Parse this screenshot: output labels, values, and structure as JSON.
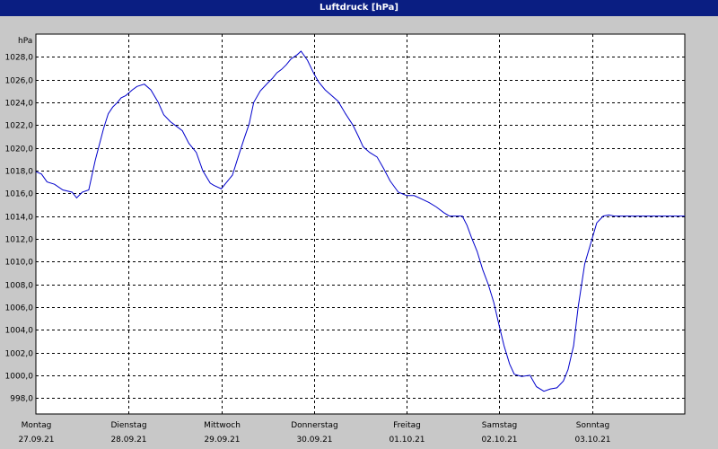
{
  "window": {
    "title": "Luftdruck [hPa]"
  },
  "chart_data": {
    "type": "line",
    "title": "Luftdruck [hPa]",
    "ylabel": "hPa",
    "xlabel": "",
    "ylim": [
      996.6,
      1030.0
    ],
    "xlim": [
      0,
      7
    ],
    "grid": true,
    "y_ticks": [
      "998,0",
      "1000,0",
      "1002,0",
      "1004,0",
      "1006,0",
      "1008,0",
      "1010,0",
      "1012,0",
      "1014,0",
      "1016,0",
      "1018,0",
      "1020,0",
      "1022,0",
      "1024,0",
      "1026,0",
      "1028,0"
    ],
    "y_tick_values": [
      998,
      1000,
      1002,
      1004,
      1006,
      1008,
      1010,
      1012,
      1014,
      1016,
      1018,
      1020,
      1022,
      1024,
      1026,
      1028
    ],
    "x_ticks": [
      {
        "day": "Montag",
        "date": "27.09.21"
      },
      {
        "day": "Dienstag",
        "date": "28.09.21"
      },
      {
        "day": "Mittwoch",
        "date": "29.09.21"
      },
      {
        "day": "Donnerstag",
        "date": "30.09.21"
      },
      {
        "day": "Freitag",
        "date": "01.10.21"
      },
      {
        "day": "Samstag",
        "date": "02.10.21"
      },
      {
        "day": "Sonntag",
        "date": "03.10.21"
      }
    ],
    "series": [
      {
        "color": "#0000cc",
        "x": [
          0.0,
          0.06,
          0.12,
          0.2,
          0.29,
          0.39,
          0.44,
          0.5,
          0.57,
          0.64,
          0.73,
          0.78,
          0.83,
          0.88,
          0.92,
          0.97,
          1.04,
          1.09,
          1.17,
          1.24,
          1.32,
          1.38,
          1.45,
          1.5,
          1.58,
          1.65,
          1.73,
          1.8,
          1.88,
          1.92,
          2.0,
          2.06,
          2.12,
          2.19,
          2.25,
          2.3,
          2.35,
          2.42,
          2.5,
          2.55,
          2.6,
          2.65,
          2.7,
          2.75,
          2.82,
          2.86,
          2.93,
          3.0,
          3.05,
          3.12,
          3.19,
          3.26,
          3.34,
          3.42,
          3.48,
          3.53,
          3.6,
          3.68,
          3.75,
          3.82,
          3.91,
          4.0,
          4.08,
          4.16,
          4.24,
          4.32,
          4.4,
          4.46,
          4.52,
          4.6,
          4.65,
          4.7,
          4.76,
          4.82,
          4.88,
          4.94,
          5.0,
          5.05,
          5.11,
          5.16,
          5.24,
          5.33,
          5.4,
          5.48,
          5.55,
          5.62,
          5.69,
          5.74,
          5.8,
          5.85,
          5.92,
          6.0,
          6.05,
          6.12,
          6.18,
          6.24,
          6.3,
          6.37,
          6.44,
          6.51,
          6.55,
          6.59,
          6.65,
          6.7,
          6.8,
          6.88,
          6.94,
          7.0
        ],
        "values": [
          1017.9,
          1017.7,
          1017.0,
          1016.8,
          1016.3,
          1016.1,
          1015.6,
          1016.1,
          1016.3,
          1018.9,
          1021.7,
          1023.0,
          1023.6,
          1024.0,
          1024.4,
          1024.6,
          1025.1,
          1025.4,
          1025.6,
          1025.1,
          1024.0,
          1022.9,
          1022.3,
          1022.0,
          1021.5,
          1020.4,
          1019.6,
          1018.0,
          1016.9,
          1016.7,
          1016.4,
          1017.0,
          1017.6,
          1019.4,
          1020.9,
          1022.1,
          1024.0,
          1025.0,
          1025.7,
          1026.1,
          1026.6,
          1026.9,
          1027.3,
          1027.8,
          1028.2,
          1028.5,
          1027.7,
          1026.5,
          1025.8,
          1025.1,
          1024.6,
          1024.1,
          1023.0,
          1022.0,
          1021.0,
          1020.1,
          1019.6,
          1019.2,
          1018.2,
          1017.1,
          1016.1,
          1015.8,
          1015.8,
          1015.5,
          1015.2,
          1014.8,
          1014.3,
          1014.0,
          1014.0,
          1014.0,
          1013.2,
          1012.1,
          1010.9,
          1009.3,
          1008.0,
          1006.4,
          1004.3,
          1002.6,
          1001.0,
          1000.1,
          999.9,
          1000.0,
          999.0,
          998.6,
          998.8,
          998.9,
          999.5,
          1000.5,
          1002.6,
          1006.0,
          1009.8,
          1012.0,
          1013.4,
          1014.0,
          1014.1,
          1014.0,
          1014.0,
          1014.0,
          1014.0,
          1014.0,
          1014.0,
          1014.0,
          1014.0,
          1014.0,
          1014.0,
          1014.0,
          1014.0,
          1014.0
        ]
      }
    ]
  }
}
